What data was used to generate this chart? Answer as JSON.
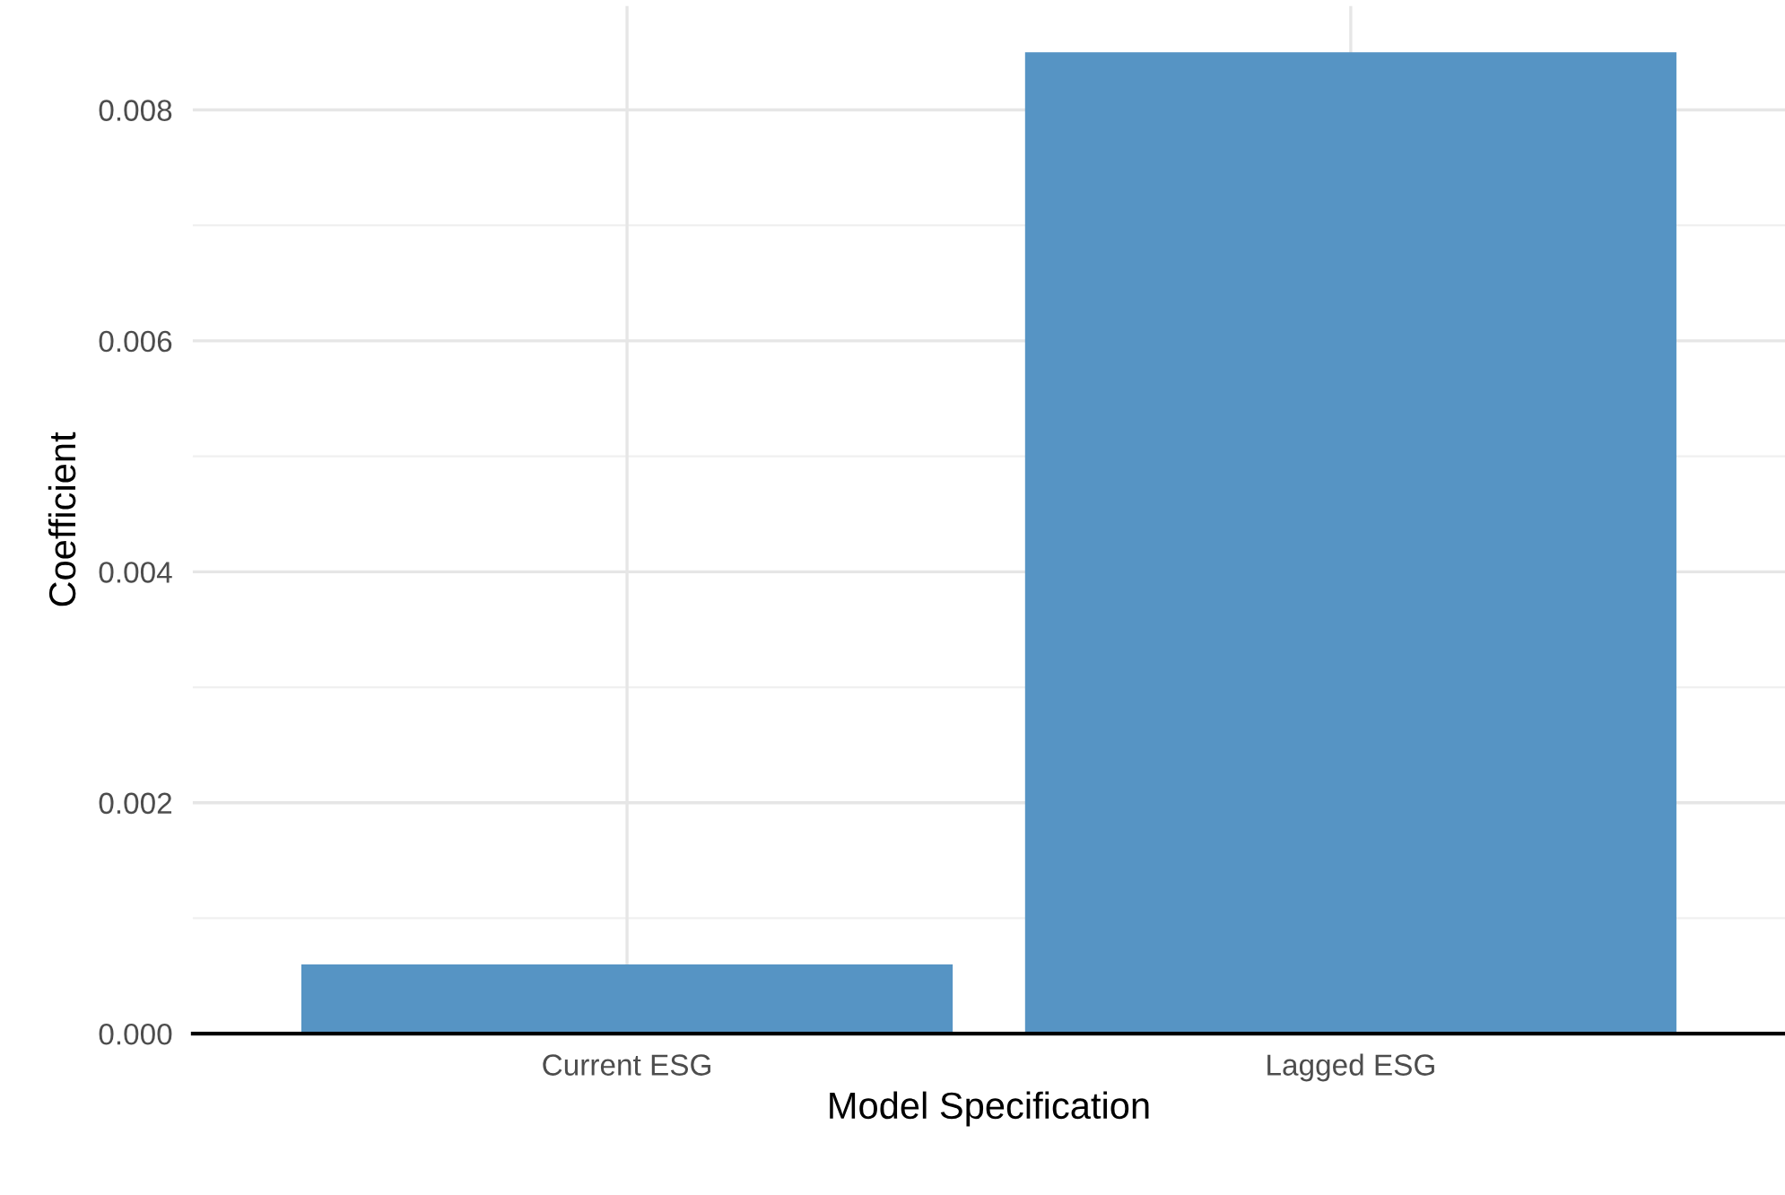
{
  "chart_data": {
    "type": "bar",
    "xlabel": "Model Specification",
    "ylabel": "Coefficient",
    "categories": [
      "Current ESG",
      "Lagged ESG"
    ],
    "values": [
      0.0006,
      0.0085
    ],
    "color": "#5694c4",
    "ylim": [
      0,
      0.0089
    ],
    "yticks": [
      {
        "value": 0,
        "label": "0.000"
      },
      {
        "value": 0.002,
        "label": "0.002"
      },
      {
        "value": 0.004,
        "label": "0.004"
      },
      {
        "value": 0.006,
        "label": "0.006"
      },
      {
        "value": 0.008,
        "label": "0.008"
      }
    ],
    "grid": true
  }
}
